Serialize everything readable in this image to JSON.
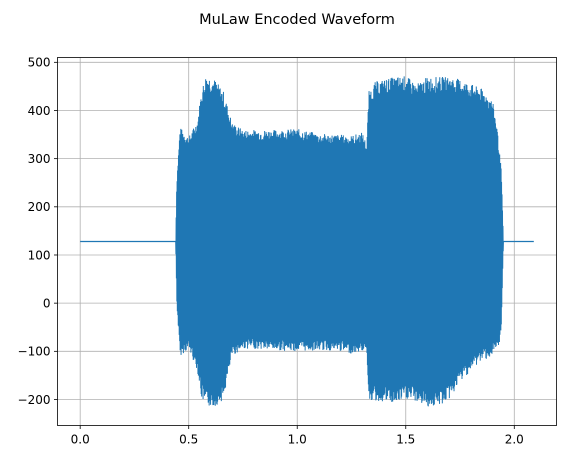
{
  "chart_data": {
    "type": "line",
    "title": "MuLaw Encoded Waveform",
    "xlabel": "",
    "ylabel": "",
    "xlim": [
      -0.1045,
      2.1945
    ],
    "ylim": [
      -254,
      510
    ],
    "grid": true,
    "color": "#1f77b4",
    "x_ticks": [
      {
        "value": 0.0,
        "label": "0.0"
      },
      {
        "value": 0.5,
        "label": "0.5"
      },
      {
        "value": 1.0,
        "label": "1.0"
      },
      {
        "value": 1.5,
        "label": "1.5"
      },
      {
        "value": 2.0,
        "label": "2.0"
      }
    ],
    "y_ticks": [
      {
        "value": -200,
        "label": "−200"
      },
      {
        "value": -100,
        "label": "−100"
      },
      {
        "value": 0,
        "label": "0"
      },
      {
        "value": 100,
        "label": "100"
      },
      {
        "value": 200,
        "label": "200"
      },
      {
        "value": 300,
        "label": "300"
      },
      {
        "value": 400,
        "label": "400"
      },
      {
        "value": 500,
        "label": "500"
      }
    ],
    "series": [
      {
        "baseline": 128,
        "x_range": [
          0.0,
          2.09
        ],
        "envelope": {
          "x": [
            0.44,
            0.445,
            0.46,
            0.5,
            0.54,
            0.56,
            0.58,
            0.62,
            0.66,
            0.7,
            0.75,
            0.8,
            0.9,
            1.0,
            1.1,
            1.2,
            1.25,
            1.3,
            1.32,
            1.33,
            1.36,
            1.4,
            1.45,
            1.5,
            1.55,
            1.6,
            1.65,
            1.7,
            1.75,
            1.8,
            1.85,
            1.9,
            1.92,
            1.93,
            1.94,
            1.95
          ],
          "max": [
            128,
            255,
            365,
            345,
            380,
            445,
            475,
            465,
            440,
            375,
            360,
            360,
            360,
            362,
            352,
            350,
            348,
            355,
            330,
            440,
            460,
            465,
            470,
            472,
            455,
            470,
            470,
            470,
            465,
            455,
            445,
            420,
            370,
            320,
            280,
            128
          ],
          "min": [
            128,
            0,
            -110,
            -95,
            -140,
            -200,
            -215,
            -215,
            -200,
            -110,
            -95,
            -95,
            -98,
            -100,
            -98,
            -100,
            -105,
            -100,
            -95,
            -200,
            -205,
            -205,
            -210,
            -200,
            -205,
            -215,
            -215,
            -200,
            -165,
            -140,
            -120,
            -110,
            -100,
            -90,
            -60,
            128
          ]
        }
      }
    ]
  }
}
